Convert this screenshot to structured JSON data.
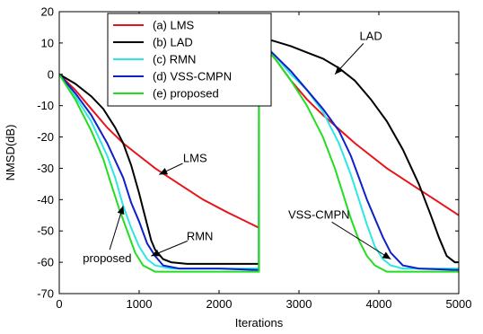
{
  "chart_data": {
    "type": "line",
    "title": "",
    "xlabel": "Iterations",
    "ylabel": "NMSD(dB)",
    "xlim": [
      0,
      5000
    ],
    "ylim": [
      -70,
      20
    ],
    "xticks": [
      0,
      1000,
      2000,
      3000,
      4000,
      5000
    ],
    "xtick_labels": [
      "0",
      "1000",
      "2000",
      "3000",
      "4000",
      "5000"
    ],
    "yticks": [
      20,
      10,
      0,
      -10,
      -20,
      -30,
      -40,
      -50,
      -60,
      -70
    ],
    "ytick_labels": [
      "20",
      "10",
      "0",
      "-10",
      "-20",
      "-30",
      "-40",
      "-50",
      "-60",
      "-70"
    ],
    "grid": false,
    "legend_position": "top-left",
    "series": [
      {
        "name": "(a) LMS",
        "color": "#e8141c",
        "points": [
          [
            0,
            0
          ],
          [
            200,
            -5
          ],
          [
            400,
            -11
          ],
          [
            600,
            -17
          ],
          [
            800,
            -22
          ],
          [
            1000,
            -26
          ],
          [
            1200,
            -30
          ],
          [
            1500,
            -35
          ],
          [
            1800,
            -40
          ],
          [
            2100,
            -44
          ],
          [
            2300,
            -46.5
          ],
          [
            2499,
            -49
          ],
          [
            2500,
            11
          ],
          [
            2700,
            5
          ],
          [
            2900,
            -2
          ],
          [
            3100,
            -8
          ],
          [
            3300,
            -13
          ],
          [
            3500,
            -17.5
          ],
          [
            3700,
            -22
          ],
          [
            3900,
            -26
          ],
          [
            4100,
            -30
          ],
          [
            4400,
            -35
          ],
          [
            4700,
            -40
          ],
          [
            5000,
            -45
          ]
        ]
      },
      {
        "name": "(b) LAD",
        "color": "#000000",
        "points": [
          [
            0,
            0
          ],
          [
            200,
            -3
          ],
          [
            400,
            -7
          ],
          [
            550,
            -11
          ],
          [
            700,
            -17
          ],
          [
            800,
            -22
          ],
          [
            900,
            -29
          ],
          [
            1000,
            -38
          ],
          [
            1050,
            -43
          ],
          [
            1100,
            -48
          ],
          [
            1150,
            -53
          ],
          [
            1200,
            -56
          ],
          [
            1300,
            -59
          ],
          [
            1400,
            -60
          ],
          [
            1600,
            -60.5
          ],
          [
            2000,
            -60.5
          ],
          [
            2499,
            -60.5
          ],
          [
            2500,
            12
          ],
          [
            2700,
            10.5
          ],
          [
            2900,
            9
          ],
          [
            3100,
            7
          ],
          [
            3300,
            5
          ],
          [
            3500,
            2
          ],
          [
            3700,
            -2
          ],
          [
            3900,
            -8
          ],
          [
            4100,
            -15
          ],
          [
            4300,
            -24
          ],
          [
            4500,
            -35
          ],
          [
            4650,
            -45
          ],
          [
            4750,
            -52
          ],
          [
            4850,
            -58
          ],
          [
            4950,
            -60
          ],
          [
            5000,
            -60
          ]
        ]
      },
      {
        "name": "(c) RMN",
        "color": "#2ee6e6",
        "points": [
          [
            0,
            0
          ],
          [
            200,
            -7
          ],
          [
            400,
            -15
          ],
          [
            600,
            -26
          ],
          [
            700,
            -33
          ],
          [
            800,
            -42
          ],
          [
            900,
            -49
          ],
          [
            1000,
            -55
          ],
          [
            1100,
            -59
          ],
          [
            1200,
            -61
          ],
          [
            1400,
            -62
          ],
          [
            2000,
            -62
          ],
          [
            2499,
            -62
          ],
          [
            2500,
            11
          ],
          [
            2700,
            6
          ],
          [
            2900,
            0
          ],
          [
            3100,
            -5
          ],
          [
            3300,
            -12
          ],
          [
            3500,
            -22
          ],
          [
            3650,
            -32
          ],
          [
            3750,
            -40
          ],
          [
            3850,
            -48
          ],
          [
            3950,
            -55
          ],
          [
            4050,
            -59
          ],
          [
            4150,
            -61
          ],
          [
            4300,
            -62
          ],
          [
            4600,
            -62
          ],
          [
            5000,
            -62
          ]
        ]
      },
      {
        "name": "(d) VSS-CMPN",
        "color": "#1020c8",
        "points": [
          [
            0,
            0
          ],
          [
            200,
            -6
          ],
          [
            400,
            -13
          ],
          [
            600,
            -22
          ],
          [
            800,
            -33
          ],
          [
            900,
            -41
          ],
          [
            1000,
            -47
          ],
          [
            1100,
            -54
          ],
          [
            1200,
            -58
          ],
          [
            1300,
            -61
          ],
          [
            1500,
            -62
          ],
          [
            2000,
            -62
          ],
          [
            2499,
            -62.5
          ],
          [
            2500,
            11
          ],
          [
            2700,
            6
          ],
          [
            2900,
            1
          ],
          [
            3100,
            -5
          ],
          [
            3300,
            -11
          ],
          [
            3500,
            -18
          ],
          [
            3650,
            -26
          ],
          [
            3750,
            -33
          ],
          [
            3850,
            -40
          ],
          [
            3950,
            -46
          ],
          [
            4050,
            -52
          ],
          [
            4150,
            -57
          ],
          [
            4300,
            -61
          ],
          [
            4500,
            -62
          ],
          [
            5000,
            -62.5
          ]
        ]
      },
      {
        "name": "(e) proposed",
        "color": "#22dd22",
        "points": [
          [
            0,
            0
          ],
          [
            200,
            -8
          ],
          [
            400,
            -18
          ],
          [
            550,
            -27
          ],
          [
            650,
            -35
          ],
          [
            750,
            -43
          ],
          [
            850,
            -50
          ],
          [
            950,
            -57
          ],
          [
            1050,
            -61
          ],
          [
            1200,
            -63
          ],
          [
            1500,
            -63
          ],
          [
            2000,
            -63
          ],
          [
            2499,
            -63
          ],
          [
            2500,
            11
          ],
          [
            2700,
            5
          ],
          [
            2900,
            -2
          ],
          [
            3100,
            -10
          ],
          [
            3300,
            -20
          ],
          [
            3450,
            -30
          ],
          [
            3550,
            -38
          ],
          [
            3650,
            -46
          ],
          [
            3750,
            -53
          ],
          [
            3850,
            -58
          ],
          [
            3950,
            -61
          ],
          [
            4100,
            -63
          ],
          [
            4500,
            -63
          ],
          [
            5000,
            -63
          ]
        ]
      }
    ],
    "annotations": [
      {
        "text": "LAD",
        "label_at": [
          3900,
          11
        ],
        "arrow_to": [
          3450,
          0
        ]
      },
      {
        "text": "LMS",
        "label_at": [
          1700,
          -28
        ],
        "arrow_to": [
          1250,
          -32
        ]
      },
      {
        "text": "VSS-CMPN",
        "label_at": [
          3250,
          -46
        ],
        "arrow_to": [
          4150,
          -59
        ]
      },
      {
        "text": "RMN",
        "label_at": [
          1760,
          -53
        ],
        "arrow_to": [
          1150,
          -58
        ]
      },
      {
        "text": "proposed",
        "label_at": [
          600,
          -60
        ],
        "arrow_to": [
          800,
          -42
        ]
      }
    ]
  }
}
